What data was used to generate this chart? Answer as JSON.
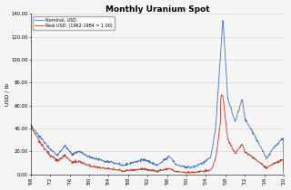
{
  "title": "Monthly Uranium Spot",
  "ylabel": "USD / lb",
  "legend_nominal": "Nominal, USD",
  "legend_real": "Real USD: (1962-1984 = 1.00)",
  "nominal_color": "#4472c4",
  "real_color": "#c0392b",
  "ylim": [
    0,
    140
  ],
  "yticks": [
    0,
    20,
    40,
    60,
    80,
    100,
    120,
    140
  ],
  "ytick_labels": [
    "0.00",
    "20.00",
    "40.00",
    "60.00",
    "80.00",
    "100.00",
    "120.00",
    "140.00"
  ],
  "start_year": 1968,
  "end_year": 2020,
  "background_color": "#f5f5f5",
  "grid_color": "#d0d0d0"
}
